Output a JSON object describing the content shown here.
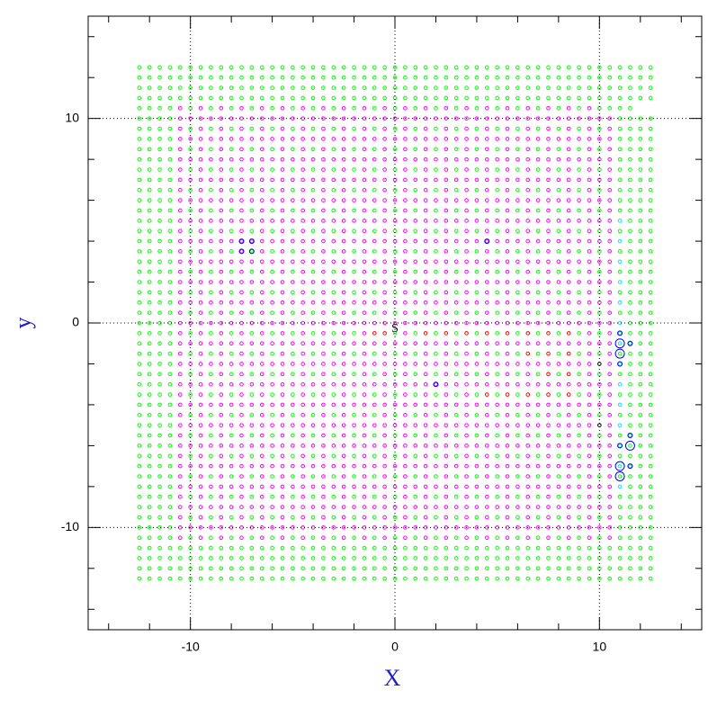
{
  "chart_data": {
    "type": "scatter",
    "x_label": "X",
    "y_label": "y",
    "annotation": "S",
    "xlim": [
      -15,
      15
    ],
    "ylim": [
      -15,
      15
    ],
    "xticks": [
      -10,
      0,
      10
    ],
    "yticks": [
      -10,
      0,
      10
    ],
    "xminorticks": [
      -14,
      -12,
      -8,
      -6,
      -4,
      -2,
      2,
      4,
      6,
      8,
      12,
      14
    ],
    "yminorticks": [
      -14,
      -12,
      -8,
      -6,
      -4,
      -2,
      2,
      4,
      6,
      8,
      12,
      14
    ],
    "grid": true,
    "palette": {
      "g": "#00ff00",
      "m": "#ff00ff",
      "c": "#00e5ff",
      "r": "#ff0000",
      "k": "#000000",
      "b": "#0000ff"
    },
    "x": [
      -12.5,
      -12,
      -11.5,
      -11,
      -10.5,
      -10,
      -9.5,
      -9,
      -8.5,
      -8,
      -7.5,
      -7,
      -6.5,
      -6,
      -5.5,
      -5,
      -4.5,
      -4,
      -3.5,
      -3,
      -2.5,
      -2,
      -1.5,
      -1,
      -0.5,
      0,
      0.5,
      1,
      1.5,
      2,
      2.5,
      3,
      3.5,
      4,
      4.5,
      5,
      5.5,
      6,
      6.5,
      7,
      7.5,
      8,
      8.5,
      9,
      9.5,
      10,
      10.5,
      11,
      11.5,
      12,
      12.5
    ],
    "y": [
      12.5,
      12,
      11.5,
      11,
      10.5,
      10,
      9.5,
      9,
      8.5,
      8,
      7.5,
      7,
      6.5,
      6,
      5.5,
      5,
      4.5,
      4,
      3.5,
      3,
      2.5,
      2,
      1.5,
      1,
      0.5,
      0,
      -0.5,
      -1,
      -1.5,
      -2,
      -2.5,
      -3,
      -3.5,
      -4,
      -4.5,
      -5,
      -5.5,
      -6,
      -6.5,
      -7,
      -7.5,
      -8,
      -8.5,
      -9,
      -9.5,
      -10,
      -10.5,
      -11,
      -11.5,
      -12,
      -12.5
    ],
    "grid_colors": [
      "ggggggggggggggggggggggggggggggggggggggggggggggggggg",
      "ggggggggggggggggggggggggggggggggggggggggggggggggggg",
      "ggggggggggggggggggggggggggggggggggggggggggggggggggg",
      "ggggggggggggggggggggggggggggggggggggggggggggggggggg",
      "ggggmgmgmgmgmgmgmgmgmgmgmgmgmgmgmgmgmgmgmgmgmgggg",
      "ggggmmmmmmmmmmmmmmmmmmmmmmmmmmmmmmmmmmmmmmmmmmmgggg",
      "ggggmgmgmgmgmgmgmgmgmgmgmgmgmgmgmgmgmgmgmgmgmgmgggg",
      "ggggmmmmmmmmmmmmmmmmmmmmmmmmmmmmmmmmmmmmmmmmmmmgggg",
      "ggggmgmgmgmgmgmgmgmgmgmgmgmgmgmgmgmgmgmgmgmgmgmgggg",
      "ggggmmmmmmmmmmmmmmmmmmmmmmmmmmmmmmmmmmmmmmmmmmmgggg",
      "ggggmgmgmgmgmgmgmgmgmgmgmgmgmgmgmgmgmgmgmgmgmgmgggg",
      "ggggmmmmmmmmmmmmmmmmmmmmmmmmmmmmmmmmmmmmmmmmmmmgggg",
      "ggggmgmgmgmgmgmgmgmgmgmgmgmgmgmgmgmgmgmgmgmgmgmgggg",
      "ggggmmmmmmmmmmmmmmmmmmmmmmmmmmmmmmmmmmmmmmmmmmmgggg",
      "ggggmgmgmgmgmgmgmgmgmgmgmgmgmgmgmgmgmgmgmgmgmgmgggg",
      "ggggmmmmmmmmmmmmmmmmmmmmmmmmmmmmmmmmmmmmmmmmmmmcggg",
      "ggggmgmgmgmgmgmgmgmgmgmgmgmgmgmgmgmgmgmgmgmgmgmgggg",
      "ggggmmmmmmmmmmmmmmmmmmmmmmmmmmmmmmmmmmmmmmmmmmmcggg",
      "ggggmgmgmgmgmgmgmgmgmgmgmgmgmgmgmgmgmgmgmgmgmgmgggg",
      "ggggmmmmmmmmmmmmmmmmmmmmmmmmmmmmmmmmmmmmmmmmmmmcggg",
      "ggggmgmgmgmgmgmgmgmgmgmgmgmgmgmgmgmgmgmgmgmgmgmgggg",
      "ggggmmmmmmmmmmmmmmmmmmmmmmmmmmmmmmmmmmmmmmmmmmmcggg",
      "ggggmgmgmgmgmgmgmgmgmgmgmgmgmgmgmgmgmgmgmgmgmgmgggg",
      "ggggmmmmmmmmmmmmmmmmmmmmmmmmmmmmmmmmmmmmmmmmmmmcggg",
      "ggggmgmgmgmgmgmgmgmgmgmgmgmgmgmgmgmgmgmgmgmgmgmgggg",
      "ggggmmmmmmmmmmmmmmmmmmmmmmmmmmmmmmmmmmmmmmmmmmmcggg",
      "ggggmgmgmgmgmgmgmgmgmgmrrgmgrgrgrgrgrgrgrgrgmgmgggg",
      "ggggmmmmmmmmmmmmmmmmmmmmmmmmmmmmmmmmmmmmmmmmmmmcggg",
      "ggggmgmgmgmgmgmgmgmgmgmgmgmgmgmgmgmgmgrgrgrgmgmgggg",
      "ggggmmmmmmmmmmmmmmmmmmmmmmmmmmmmmmmmmmmmmmmmmkmcggg",
      "ggggmgmgmgmgmgmgmgmgmgmgmgmgmgmgmgmgmgmgrgrgmgmgggg",
      "ggggmmmmmmmmmmmmmmmmmmmmmmmmmmmmmmmmmmmmmmmmmmmcggg",
      "ggggmgmgmgmgmgmgmgmgmgmgmgmgmgmgmgrgrgrgrgrgmgmgggg",
      "ggggmmmmmmmmmmmmmmmmmmmmmmmmmmmmmmmmmmmmmmmmmmmcggg",
      "ggggmgmgmgmgmgmgmgmgmgmgmgmgmgmgmgmgmgmgmgmgmgmgggg",
      "ggggmmmmmmmmmmmmmmmmmmmmmmmmmmmmmmmmmmmmmmmmmkmcggg",
      "ggggmgmgmgmgmgmgmgmgmgmgmgmgmgmgmgmgmgmgmgmgmgmgggg",
      "ggggmmmmmmmmmmmmmmmmmmmmmmmmmmmmmmmmmmmmmmmmmmmcggg",
      "ggggmgmgmgmgmgmgmgmgmgmgmgmgmgmgmgmgmgmgmgmgmgmgggg",
      "ggggmmmmmmmmmmmmmmmmmmmmmmmmmmmmmmmmmmmmmmmmmmmcggg",
      "ggggmgmgmgmgmgmgmgmgmgmgmgmgmgmgmgmgmgmgmgmgmgmgggg",
      "ggggmmmmmmmmmmmmmmmmmmmmmmmmmmmmmmmmmmmmmmmmmmmcggg",
      "ggggmgmgmgmgmgmgmgmgmgmgmgmgmgmgmgmgmgmgmgmgmgmgggg",
      "ggggmmmmmmmmmmmmmmmmmmmmmmmmmmmmmmmmmmmmmmmmmmmgggg",
      "ggggmgmgmgmgmgmgmgmgmgmgmgmgmgmgmgmgmgmgmgmgmgmgggg",
      "ggggmmmmmmmmmmmmmmmmmmmmmmmmmmmmmmmmmmmmmmmmmmmgggg",
      "ggggmgmgmgmgmgmgmgmgmgmgmgmgmgmgmgmgmgmgmgmgmgmgggg",
      "ggggggggggggggggggggggggggggggggggggggggggggggggggg",
      "ggggggggggggggggggggggggggggggggggggggggggggggggggg",
      "ggggggggggggggggggggggggggggggggggggggggggggggggggg",
      "ggggggggggggggggggggggggggggggggggggggggggggggggggg"
    ],
    "series": [
      {
        "color": "#0000ff",
        "x": [
          11,
          11,
          11,
          11,
          11.5,
          11.5,
          11,
          11.5,
          11,
          11,
          11.5,
          -7.5,
          -7,
          -7.5,
          -7,
          2,
          4.5
        ],
        "y": [
          -0.5,
          -1,
          -1.5,
          -2,
          -1,
          -5.5,
          -6,
          -6,
          -7,
          -7.5,
          -7,
          4,
          4,
          3.5,
          3.5,
          -3,
          4
        ],
        "sizes": [
          1,
          2,
          2,
          1,
          1,
          1,
          1,
          2,
          2,
          2,
          1,
          1,
          1,
          1,
          1,
          1,
          1
        ]
      }
    ]
  }
}
